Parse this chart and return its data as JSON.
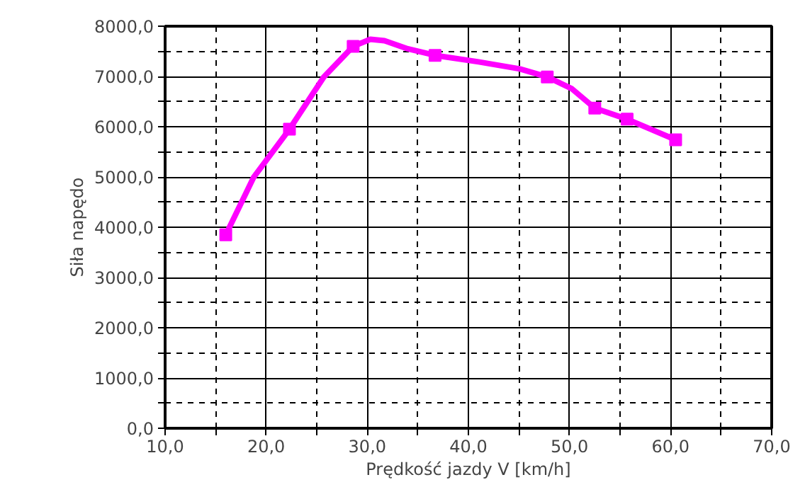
{
  "chart_data": {
    "type": "line",
    "xlabel": "Prędkość jazdy V [km/h]",
    "ylabel": "Siła napędo",
    "xlim": [
      10,
      70
    ],
    "ylim": [
      0,
      8000
    ],
    "xticks": [
      {
        "value": 10,
        "label": "10,0"
      },
      {
        "value": 15,
        "label": null
      },
      {
        "value": 20,
        "label": "20,0"
      },
      {
        "value": 25,
        "label": null
      },
      {
        "value": 30,
        "label": "30,0"
      },
      {
        "value": 35,
        "label": null
      },
      {
        "value": 40,
        "label": "40,0"
      },
      {
        "value": 45,
        "label": null
      },
      {
        "value": 50,
        "label": "50,0"
      },
      {
        "value": 55,
        "label": null
      },
      {
        "value": 60,
        "label": "60,0"
      },
      {
        "value": 65,
        "label": null
      },
      {
        "value": 70,
        "label": "70,0"
      }
    ],
    "yticks": [
      {
        "value": 0,
        "label": "0,0"
      },
      {
        "value": 500,
        "label": null
      },
      {
        "value": 1000,
        "label": "1000,0"
      },
      {
        "value": 1500,
        "label": null
      },
      {
        "value": 2000,
        "label": "2000,0"
      },
      {
        "value": 2500,
        "label": null
      },
      {
        "value": 3000,
        "label": "3000,0"
      },
      {
        "value": 3500,
        "label": null
      },
      {
        "value": 4000,
        "label": "4000,0"
      },
      {
        "value": 4500,
        "label": null
      },
      {
        "value": 5000,
        "label": "5000,0"
      },
      {
        "value": 5500,
        "label": null
      },
      {
        "value": 6000,
        "label": "6000,0"
      },
      {
        "value": 6500,
        "label": null
      },
      {
        "value": 7000,
        "label": "7000,0"
      },
      {
        "value": 7500,
        "label": null
      },
      {
        "value": 8000,
        "label": "8000,0"
      }
    ],
    "grid": true,
    "series": [
      {
        "color": "#ff00ff",
        "marker": "none",
        "line_style": "solid",
        "x": [
          16.0,
          18.75,
          22.3,
          25.7,
          28.6,
          30.3,
          31.7,
          34.0,
          36.7,
          41.0,
          45.1,
          47.8,
          50.2,
          52.5,
          55.7,
          60.5
        ],
        "values": [
          3850,
          4990,
          5950,
          6990,
          7600,
          7740,
          7710,
          7550,
          7420,
          7290,
          7150,
          6990,
          6760,
          6370,
          6150,
          5740
        ]
      },
      {
        "type": "scatter",
        "color": "#ff00ff",
        "marker": "square",
        "x": [
          16.0,
          22.3,
          28.6,
          36.7,
          47.8,
          52.5,
          55.7,
          60.5
        ],
        "values": [
          3850,
          5950,
          7600,
          7420,
          6990,
          6370,
          6150,
          5740
        ]
      }
    ]
  }
}
